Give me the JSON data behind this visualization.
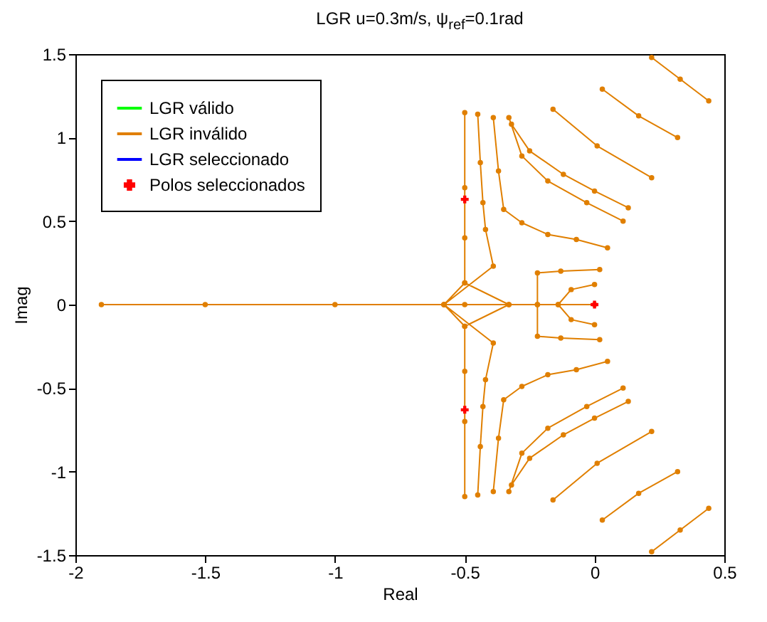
{
  "chart_data": {
    "type": "line",
    "title": "LGR u=0.3m/s, ψ$_{ref}$=0.1rad",
    "xlabel": "Real",
    "ylabel": "Imag",
    "xlim": [
      -2,
      0.5
    ],
    "xticks": [
      -2,
      -1.5,
      -1,
      -0.5,
      0,
      0.5
    ],
    "ylim": [
      -1.5,
      1.5
    ],
    "yticks": [
      -1.5,
      -1,
      -0.5,
      0,
      0.5,
      1,
      1.5
    ],
    "grid": false,
    "legend": "top left",
    "line_style": "solid",
    "series": [
      {
        "name": "LGR válido",
        "color": "#00ff00",
        "marker": "none"
      },
      {
        "name": "LGR inválido",
        "color": "#e07f00",
        "marker": "circle",
        "x": [
          -1.9,
          -1.5,
          -1,
          -0.5,
          0,
          null,
          -0.5,
          -0.5,
          -0.5,
          -0.5,
          null,
          -0.58,
          -0.5,
          -0.33,
          null,
          -0.58,
          -0.39,
          -0.42,
          -0.43,
          -0.44,
          -0.45,
          null,
          -0.39,
          -0.37,
          -0.35,
          -0.28,
          -0.18,
          -0.07,
          0.05,
          null,
          -0.33,
          -0.28,
          -0.18,
          -0.03,
          0.11,
          null,
          -0.32,
          -0.25,
          -0.12,
          0.0,
          0.13,
          null,
          -0.16,
          0.01,
          0.22,
          null,
          0.03,
          0.17,
          0.32,
          null,
          0.22,
          0.33,
          0.44,
          null,
          -0.22,
          -0.22,
          -0.13,
          0.02,
          null,
          -0.14,
          -0.09,
          0.0,
          null,
          -0.5,
          -0.5,
          -0.5,
          -0.5,
          null,
          -0.58,
          -0.5,
          -0.33,
          null,
          -0.58,
          -0.39,
          -0.42,
          -0.43,
          -0.44,
          -0.45,
          null,
          -0.39,
          -0.37,
          -0.35,
          -0.28,
          -0.18,
          -0.07,
          0.05,
          null,
          -0.33,
          -0.28,
          -0.18,
          -0.03,
          0.11,
          null,
          -0.32,
          -0.25,
          -0.12,
          0.0,
          0.13,
          null,
          -0.16,
          0.01,
          0.22,
          null,
          0.03,
          0.17,
          0.32,
          null,
          0.22,
          0.33,
          0.44,
          null,
          -0.22,
          -0.22,
          -0.13,
          0.02,
          null,
          -0.14,
          -0.09,
          0.0
        ],
        "values": [
          0,
          0,
          0,
          0,
          0,
          null,
          0.13,
          0.4,
          0.7,
          1.15,
          null,
          0,
          0.13,
          0,
          null,
          0,
          0.23,
          0.45,
          0.61,
          0.85,
          1.14,
          null,
          1.12,
          0.8,
          0.57,
          0.49,
          0.42,
          0.39,
          0.34,
          null,
          1.12,
          0.89,
          0.74,
          0.61,
          0.5,
          null,
          1.08,
          0.92,
          0.78,
          0.68,
          0.58,
          null,
          1.17,
          0.95,
          0.76,
          null,
          1.29,
          1.13,
          1.0,
          null,
          1.48,
          1.35,
          1.22,
          null,
          0,
          0.19,
          0.2,
          0.21,
          null,
          0,
          0.09,
          0.12,
          null,
          -0.13,
          -0.4,
          -0.7,
          -1.15,
          null,
          0,
          -0.13,
          0,
          null,
          0,
          -0.23,
          -0.45,
          -0.61,
          -0.85,
          -1.14,
          null,
          -1.12,
          -0.8,
          -0.57,
          -0.49,
          -0.42,
          -0.39,
          -0.34,
          null,
          -1.12,
          -0.89,
          -0.74,
          -0.61,
          -0.5,
          null,
          -1.08,
          -0.92,
          -0.78,
          -0.68,
          -0.58,
          null,
          -1.17,
          -0.95,
          -0.76,
          null,
          -1.29,
          -1.13,
          -1.0,
          null,
          -1.48,
          -1.35,
          -1.22,
          null,
          0,
          -0.19,
          -0.2,
          -0.21,
          null,
          0,
          -0.09,
          -0.12
        ]
      },
      {
        "name": "LGR seleccionado",
        "color": "#0000ff",
        "marker": "none"
      },
      {
        "name": "Polos seleccionados",
        "type": "scatter",
        "color": "#ff0000",
        "marker": "cross",
        "x": [
          -0.5,
          -0.5,
          0
        ],
        "values": [
          0.63,
          -0.63,
          0
        ]
      }
    ]
  }
}
